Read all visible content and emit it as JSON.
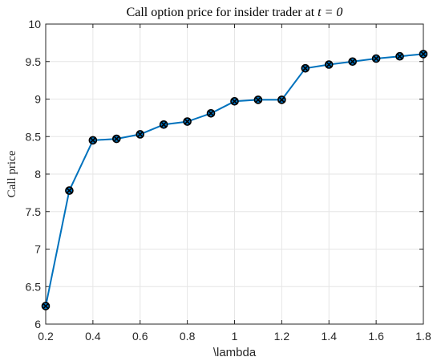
{
  "chart_data": {
    "type": "line",
    "title": "Call option price for insider trader at ",
    "title_math": "t = 0",
    "xlabel": "\\lambda",
    "ylabel": "Call price",
    "xlim": [
      0.2,
      1.8
    ],
    "ylim": [
      6,
      10
    ],
    "xticks": [
      "0.2",
      "0.4",
      "0.6",
      "0.8",
      "1",
      "1.2",
      "1.4",
      "1.6",
      "1.8"
    ],
    "yticks": [
      "6",
      "6.5",
      "7",
      "7.5",
      "8",
      "8.5",
      "9",
      "9.5",
      "10"
    ],
    "grid": true,
    "series": [
      {
        "x": [
          0.2,
          0.3,
          0.4,
          0.5,
          0.6,
          0.7,
          0.8,
          0.9,
          1.0,
          1.1,
          1.2,
          1.3,
          1.4,
          1.5,
          1.6,
          1.7,
          1.8
        ],
        "y": [
          6.24,
          7.78,
          8.45,
          8.47,
          8.53,
          8.66,
          8.7,
          8.81,
          8.97,
          8.99,
          8.99,
          9.41,
          9.46,
          9.5,
          9.54,
          9.57,
          9.6
        ]
      }
    ],
    "colors": {
      "line": "#0072BD",
      "marker_edge": "#000000",
      "grid": "#e6e6e6",
      "axis": "#262626"
    }
  }
}
